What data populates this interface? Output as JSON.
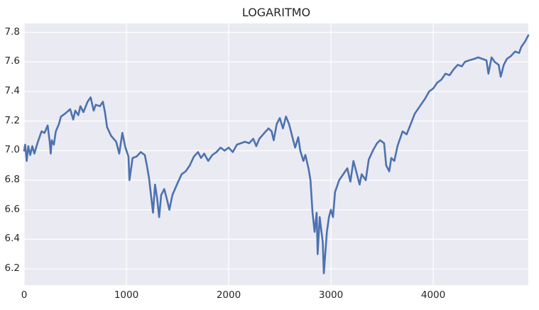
{
  "chart_data": {
    "type": "line",
    "title": "LOGARITMO",
    "xlabel": "",
    "ylabel": "",
    "xlim": [
      0,
      4930
    ],
    "ylim": [
      6.09,
      7.86
    ],
    "grid": true,
    "legend": null,
    "xticks": [
      0,
      1000,
      2000,
      3000,
      4000
    ],
    "xtick_labels": [
      "0",
      "1000",
      "2000",
      "3000",
      "4000"
    ],
    "yticks": [
      6.2,
      6.4,
      6.6,
      6.8,
      7.0,
      7.2,
      7.4,
      7.6,
      7.8
    ],
    "ytick_labels": [
      "6.2",
      "6.4",
      "6.6",
      "6.8",
      "7.0",
      "7.2",
      "7.4",
      "7.6",
      "7.8"
    ],
    "series": [
      {
        "name": "LOGARITMO",
        "color": "#4c72b0",
        "x": [
          0,
          10,
          25,
          40,
          60,
          80,
          100,
          130,
          170,
          200,
          230,
          250,
          260,
          270,
          290,
          310,
          340,
          360,
          400,
          450,
          480,
          500,
          530,
          550,
          580,
          620,
          650,
          680,
          700,
          740,
          770,
          790,
          810,
          850,
          900,
          930,
          960,
          990,
          1020,
          1030,
          1060,
          1100,
          1140,
          1180,
          1200,
          1220,
          1240,
          1260,
          1280,
          1300,
          1320,
          1340,
          1370,
          1400,
          1420,
          1450,
          1500,
          1540,
          1580,
          1620,
          1660,
          1700,
          1730,
          1760,
          1800,
          1840,
          1880,
          1920,
          1960,
          2000,
          2040,
          2080,
          2120,
          2160,
          2200,
          2240,
          2270,
          2300,
          2350,
          2390,
          2420,
          2440,
          2470,
          2500,
          2530,
          2560,
          2590,
          2620,
          2650,
          2680,
          2700,
          2730,
          2750,
          2780,
          2800,
          2820,
          2840,
          2860,
          2870,
          2890,
          2920,
          2930,
          2960,
          2980,
          3000,
          3020,
          3040,
          3080,
          3120,
          3160,
          3190,
          3220,
          3250,
          3280,
          3300,
          3340,
          3370,
          3410,
          3450,
          3480,
          3520,
          3540,
          3570,
          3590,
          3620,
          3650,
          3700,
          3740,
          3780,
          3820,
          3870,
          3920,
          3960,
          4000,
          4040,
          4080,
          4120,
          4160,
          4200,
          4240,
          4280,
          4310,
          4350,
          4400,
          4440,
          4480,
          4520,
          4540,
          4570,
          4600,
          4640,
          4660,
          4690,
          4720,
          4760,
          4800,
          4840,
          4860,
          4900,
          4930
        ],
        "values": [
          7.0,
          7.04,
          6.93,
          7.03,
          6.97,
          7.03,
          6.98,
          7.05,
          7.13,
          7.12,
          7.17,
          7.06,
          6.98,
          7.07,
          7.04,
          7.13,
          7.18,
          7.23,
          7.25,
          7.28,
          7.21,
          7.27,
          7.24,
          7.3,
          7.26,
          7.33,
          7.36,
          7.27,
          7.31,
          7.3,
          7.33,
          7.26,
          7.16,
          7.1,
          7.06,
          6.98,
          7.12,
          7.02,
          6.96,
          6.8,
          6.95,
          6.96,
          6.99,
          6.97,
          6.9,
          6.82,
          6.7,
          6.58,
          6.77,
          6.68,
          6.55,
          6.7,
          6.74,
          6.66,
          6.6,
          6.7,
          6.78,
          6.84,
          6.86,
          6.9,
          6.96,
          6.99,
          6.95,
          6.98,
          6.93,
          6.97,
          6.99,
          7.02,
          7.0,
          7.02,
          6.99,
          7.04,
          7.05,
          7.06,
          7.05,
          7.08,
          7.03,
          7.08,
          7.12,
          7.15,
          7.13,
          7.07,
          7.18,
          7.22,
          7.15,
          7.23,
          7.18,
          7.1,
          7.02,
          7.09,
          7.0,
          6.93,
          6.97,
          6.88,
          6.8,
          6.58,
          6.45,
          6.58,
          6.3,
          6.55,
          6.38,
          6.17,
          6.45,
          6.55,
          6.6,
          6.55,
          6.72,
          6.8,
          6.84,
          6.88,
          6.79,
          6.93,
          6.85,
          6.77,
          6.84,
          6.8,
          6.94,
          7.0,
          7.05,
          7.07,
          7.05,
          6.9,
          6.86,
          6.95,
          6.93,
          7.03,
          7.13,
          7.11,
          7.18,
          7.25,
          7.3,
          7.35,
          7.4,
          7.42,
          7.46,
          7.48,
          7.52,
          7.51,
          7.55,
          7.58,
          7.57,
          7.6,
          7.61,
          7.62,
          7.63,
          7.62,
          7.61,
          7.52,
          7.63,
          7.6,
          7.58,
          7.5,
          7.58,
          7.62,
          7.64,
          7.67,
          7.66,
          7.7,
          7.74,
          7.78
        ]
      }
    ],
    "style": {
      "background": "#ffffff",
      "plot_background": "#eaeaf2",
      "grid_color": "#ffffff",
      "text_color": "#262626"
    }
  }
}
